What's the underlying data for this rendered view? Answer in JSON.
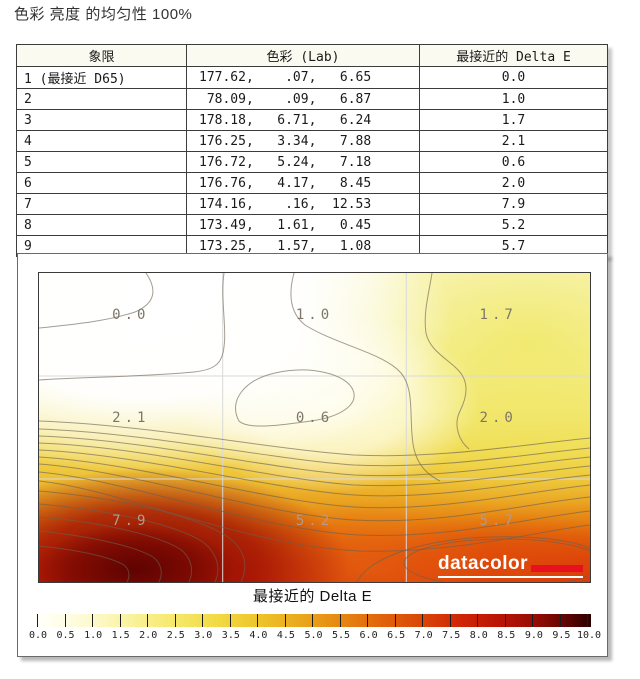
{
  "title": "色彩 亮度 的均匀性 100%",
  "table": {
    "headers": {
      "quadrant": "象限",
      "lab": "色彩 (Lab)",
      "delta_e": "最接近的 Delta E"
    },
    "rows": [
      {
        "quadrant": "1 (最接近 D65)",
        "lab": "177.62,    .07,   6.65",
        "delta_e": "0.0"
      },
      {
        "quadrant": "2",
        "lab": " 78.09,    .09,   6.87",
        "delta_e": "1.0"
      },
      {
        "quadrant": "3",
        "lab": "178.18,   6.71,   6.24",
        "delta_e": "1.7"
      },
      {
        "quadrant": "4",
        "lab": "176.25,   3.34,   7.88",
        "delta_e": "2.1"
      },
      {
        "quadrant": "5",
        "lab": "176.72,   5.24,   7.18",
        "delta_e": "0.6"
      },
      {
        "quadrant": "6",
        "lab": "176.76,   4.17,   8.45",
        "delta_e": "2.0"
      },
      {
        "quadrant": "7",
        "lab": "174.16,    .16,  12.53",
        "delta_e": "7.9"
      },
      {
        "quadrant": "8",
        "lab": "173.49,   1.61,   0.45",
        "delta_e": "5.2"
      },
      {
        "quadrant": "9",
        "lab": "173.25,   1.57,   1.08",
        "delta_e": "5.7"
      }
    ]
  },
  "chart_data": {
    "type": "heatmap",
    "title": "最接近的 Delta E",
    "grid": {
      "rows": 3,
      "cols": 3
    },
    "values": [
      [
        0.0,
        1.0,
        1.7
      ],
      [
        2.1,
        0.6,
        2.0
      ],
      [
        7.9,
        5.2,
        5.7
      ]
    ],
    "cell_labels": [
      "0.0",
      "1.0",
      "1.7",
      "2.1",
      "0.6",
      "2.0",
      "7.9",
      "5.2",
      "5.7"
    ],
    "colorbar": {
      "label": "最接近的 Delta E",
      "min": 0.0,
      "max": 10.0,
      "step": 0.5,
      "tick_labels": [
        "0.0",
        "0.5",
        "1.0",
        "1.5",
        "2.0",
        "2.5",
        "3.0",
        "3.5",
        "4.0",
        "4.5",
        "5.0",
        "5.5",
        "6.0",
        "6.5",
        "7.0",
        "7.5",
        "8.0",
        "8.5",
        "9.0",
        "9.5",
        "10.0"
      ],
      "gradient_colors": [
        "#ffffff",
        "#fdfad2",
        "#f6e96e",
        "#eec62c",
        "#e68812",
        "#da4408",
        "#b81406",
        "#660503",
        "#2a0100"
      ]
    },
    "legend_position": "bottom",
    "brand": "datacolor",
    "accent_red": "#e8101e"
  }
}
